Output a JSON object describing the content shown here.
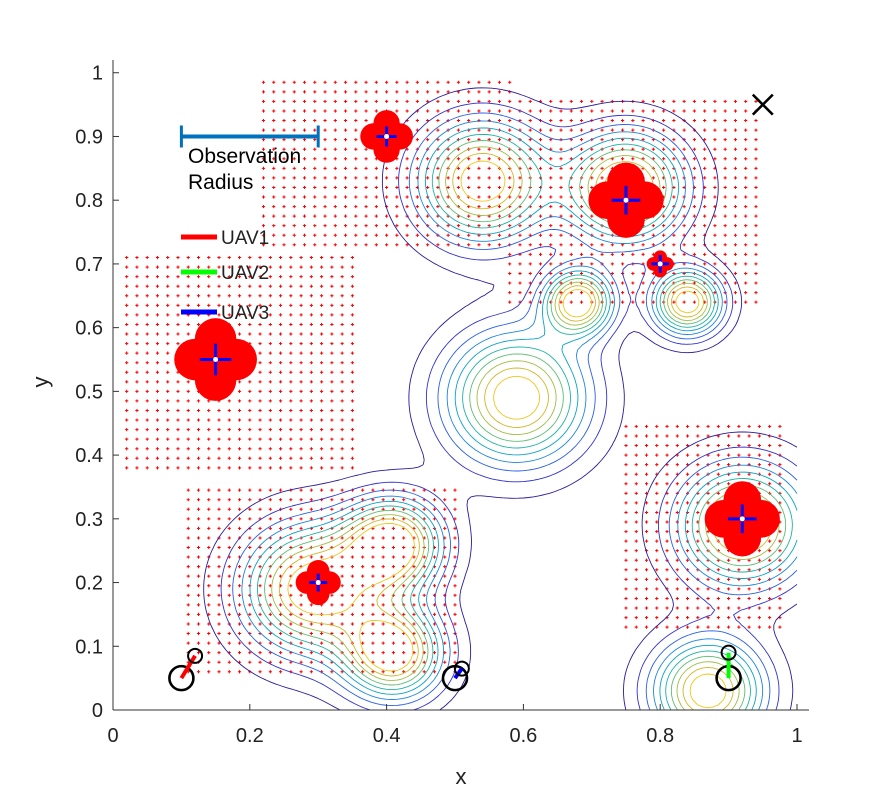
{
  "chart_data": {
    "type": "scatter",
    "title": "",
    "xlabel": "x",
    "ylabel": "y",
    "xlim": [
      0,
      1
    ],
    "ylim": [
      0,
      1.02
    ],
    "xticks": [
      "0",
      "0.2",
      "0.4",
      "0.6",
      "0.8",
      "1"
    ],
    "yticks": [
      "0",
      "0.1",
      "0.2",
      "0.3",
      "0.4",
      "0.5",
      "0.6",
      "0.7",
      "0.8",
      "0.9",
      "1"
    ],
    "annotation_text": [
      "Observation",
      "Radius"
    ],
    "observation_radius": {
      "x_start": 0.1,
      "x_end": 0.3,
      "y": 0.9
    },
    "legend": [
      {
        "label": "UAV1",
        "color": "#ff0000"
      },
      {
        "label": "UAV2",
        "color": "#00ff00"
      },
      {
        "label": "UAV3",
        "color": "#0000ff"
      }
    ],
    "targets": [
      {
        "x": 0.4,
        "y": 0.9,
        "size": 0.035
      },
      {
        "x": 0.75,
        "y": 0.8,
        "size": 0.05
      },
      {
        "x": 0.8,
        "y": 0.7,
        "size": 0.018
      },
      {
        "x": 0.15,
        "y": 0.55,
        "size": 0.055
      },
      {
        "x": 0.3,
        "y": 0.2,
        "size": 0.03
      },
      {
        "x": 0.92,
        "y": 0.3,
        "size": 0.05
      }
    ],
    "coverage_regions": [
      {
        "x0": 0.22,
        "x1": 0.58,
        "y0": 0.73,
        "y1": 0.99
      },
      {
        "x0": 0.58,
        "x1": 0.94,
        "y0": 0.64,
        "y1": 0.96
      },
      {
        "x0": 0.02,
        "x1": 0.35,
        "y0": 0.38,
        "y1": 0.71
      },
      {
        "x0": 0.11,
        "x1": 0.5,
        "y0": 0.06,
        "y1": 0.35
      },
      {
        "x0": 0.75,
        "x1": 0.98,
        "y0": 0.13,
        "y1": 0.45
      }
    ],
    "density_peaks": [
      {
        "x": 0.54,
        "y": 0.83,
        "sigma": 0.065
      },
      {
        "x": 0.75,
        "y": 0.82,
        "sigma": 0.06
      },
      {
        "x": 0.68,
        "y": 0.64,
        "sigma": 0.035
      },
      {
        "x": 0.84,
        "y": 0.64,
        "sigma": 0.035
      },
      {
        "x": 0.59,
        "y": 0.49,
        "sigma": 0.07
      },
      {
        "x": 0.29,
        "y": 0.19,
        "sigma": 0.07
      },
      {
        "x": 0.41,
        "y": 0.26,
        "sigma": 0.05
      },
      {
        "x": 0.41,
        "y": 0.09,
        "sigma": 0.05
      },
      {
        "x": 0.92,
        "y": 0.29,
        "sigma": 0.065
      },
      {
        "x": 0.87,
        "y": 0.03,
        "sigma": 0.055
      }
    ],
    "uavs": [
      {
        "name": "UAV1",
        "color": "#ff0000",
        "start": [
          0.1,
          0.05
        ],
        "end": [
          0.12,
          0.085
        ]
      },
      {
        "name": "UAV2",
        "color": "#00ff00",
        "start": [
          0.9,
          0.05
        ],
        "end": [
          0.9,
          0.09
        ]
      },
      {
        "name": "UAV3",
        "color": "#0000ff",
        "start": [
          0.5,
          0.05
        ],
        "end": [
          0.51,
          0.065
        ]
      }
    ],
    "goal": {
      "x": 0.95,
      "y": 0.95
    }
  }
}
